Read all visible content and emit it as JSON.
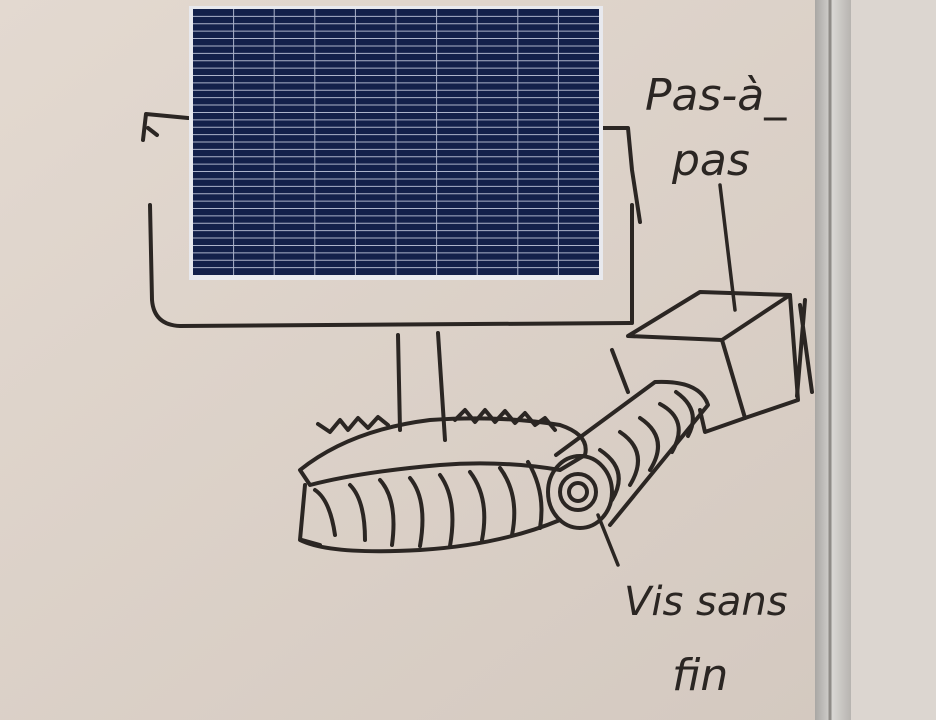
{
  "annotations": {
    "motor_label_line1": "Pas-à_",
    "motor_label_line2": "pas",
    "screw_label_line1": "Vis sans",
    "screw_label_line2": "fin"
  },
  "colors": {
    "board": "#ddd3ca",
    "marker": "#2b2623",
    "panel_cell": "#13204a",
    "panel_grid": "#c7cde2",
    "frame_metal": "#c9c7c4"
  },
  "icons": [
    "solar-panel-icon",
    "stepper-motor-icon",
    "worm-screw-icon",
    "worm-gear-icon"
  ]
}
